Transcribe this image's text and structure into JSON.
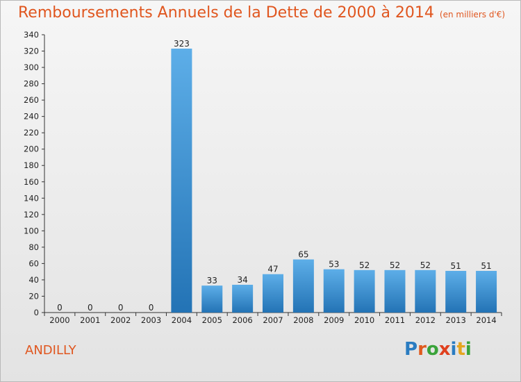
{
  "header": {
    "title": "Remboursements Annuels de la Dette de 2000 à 2014",
    "unit": "(en milliers d'€)"
  },
  "footer": {
    "commune": "ANDILLY",
    "logo": [
      "P",
      "r",
      "o",
      "x",
      "i",
      "t",
      "i"
    ],
    "logo_colors": [
      "#2a7cc1",
      "#e05a1e",
      "#3aa33a",
      "#e0401e",
      "#2a7cc1",
      "#e5a51f",
      "#3aa33a"
    ]
  },
  "colors": {
    "title": "#e0561f",
    "bar_top": "#5daee8",
    "bar_bottom": "#2373b5"
  },
  "chart_data": {
    "type": "bar",
    "title": "Remboursements Annuels de la Dette de 2000 à 2014",
    "categories": [
      "2000",
      "2001",
      "2002",
      "2003",
      "2004",
      "2005",
      "2006",
      "2007",
      "2008",
      "2009",
      "2010",
      "2011",
      "2012",
      "2013",
      "2014"
    ],
    "values": [
      0,
      0,
      0,
      0,
      323,
      33,
      34,
      47,
      65,
      53,
      52,
      52,
      52,
      51,
      51
    ],
    "data_labels": [
      "0",
      "0",
      "0",
      "0",
      "323",
      "33",
      "34",
      "47",
      "65",
      "53",
      "52",
      "52",
      "52",
      "51",
      "51"
    ],
    "yticks": [
      "0",
      "20",
      "40",
      "60",
      "80",
      "100",
      "120",
      "140",
      "160",
      "180",
      "200",
      "220",
      "240",
      "260",
      "280",
      "300",
      "320",
      "340"
    ],
    "ylim": [
      0,
      340
    ],
    "xlabel": "",
    "ylabel": "",
    "grid": false
  }
}
